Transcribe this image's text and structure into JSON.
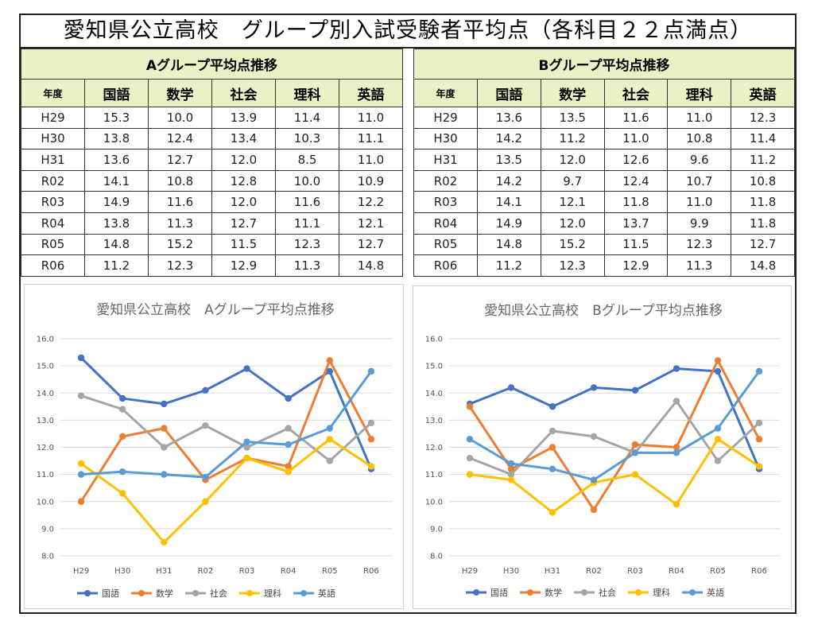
{
  "title": "愛知県公立高校　グループ別入試受験者平均点（各科目２２点満点）",
  "tables": [
    {
      "title": "Aグループ平均点推移",
      "headers": [
        "年度",
        "国語",
        "数学",
        "社会",
        "理科",
        "英語"
      ],
      "rows": [
        [
          "H29",
          "15.3",
          "10.0",
          "13.9",
          "11.4",
          "11.0"
        ],
        [
          "H30",
          "13.8",
          "12.4",
          "13.4",
          "10.3",
          "11.1"
        ],
        [
          "H31",
          "13.6",
          "12.7",
          "12.0",
          "8.5",
          "11.0"
        ],
        [
          "R02",
          "14.1",
          "10.8",
          "12.8",
          "10.0",
          "10.9"
        ],
        [
          "R03",
          "14.9",
          "11.6",
          "12.0",
          "11.6",
          "12.2"
        ],
        [
          "R04",
          "13.8",
          "11.3",
          "12.7",
          "11.1",
          "12.1"
        ],
        [
          "R05",
          "14.8",
          "15.2",
          "11.5",
          "12.3",
          "12.7"
        ],
        [
          "R06",
          "11.2",
          "12.3",
          "12.9",
          "11.3",
          "14.8"
        ]
      ]
    },
    {
      "title": "Bグループ平均点推移",
      "headers": [
        "年度",
        "国語",
        "数学",
        "社会",
        "理科",
        "英語"
      ],
      "rows": [
        [
          "H29",
          "13.6",
          "13.5",
          "11.6",
          "11.0",
          "12.3"
        ],
        [
          "H30",
          "14.2",
          "11.2",
          "11.0",
          "10.8",
          "11.4"
        ],
        [
          "H31",
          "13.5",
          "12.0",
          "12.6",
          "9.6",
          "11.2"
        ],
        [
          "R02",
          "14.2",
          "9.7",
          "12.4",
          "10.7",
          "10.8"
        ],
        [
          "R03",
          "14.1",
          "12.1",
          "11.8",
          "11.0",
          "11.8"
        ],
        [
          "R04",
          "14.9",
          "12.0",
          "13.7",
          "9.9",
          "11.8"
        ],
        [
          "R05",
          "14.8",
          "15.2",
          "11.5",
          "12.3",
          "12.7"
        ],
        [
          "R06",
          "11.2",
          "12.3",
          "12.9",
          "11.3",
          "14.8"
        ]
      ]
    }
  ],
  "chart_data": [
    {
      "type": "line",
      "title": "愛知県公立高校　Aグループ平均点推移",
      "categories": [
        "H29",
        "H30",
        "H31",
        "R02",
        "R03",
        "R04",
        "R05",
        "R06"
      ],
      "ylim": [
        8.0,
        16.0
      ],
      "yticks": [
        "8.0",
        "9.0",
        "10.0",
        "11.0",
        "12.0",
        "13.0",
        "14.0",
        "15.0",
        "16.0"
      ],
      "grid": true,
      "legend_position": "bottom",
      "series": [
        {
          "name": "国語",
          "color": "#4472c4",
          "values": [
            15.3,
            13.8,
            13.6,
            14.1,
            14.9,
            13.8,
            14.8,
            11.2
          ]
        },
        {
          "name": "数学",
          "color": "#ed7d31",
          "values": [
            10.0,
            12.4,
            12.7,
            10.8,
            11.6,
            11.3,
            15.2,
            12.3
          ]
        },
        {
          "name": "社会",
          "color": "#a5a5a5",
          "values": [
            13.9,
            13.4,
            12.0,
            12.8,
            12.0,
            12.7,
            11.5,
            12.9
          ]
        },
        {
          "name": "理科",
          "color": "#ffc000",
          "values": [
            11.4,
            10.3,
            8.5,
            10.0,
            11.6,
            11.1,
            12.3,
            11.3
          ]
        },
        {
          "name": "英語",
          "color": "#5b9bd5",
          "values": [
            11.0,
            11.1,
            11.0,
            10.9,
            12.2,
            12.1,
            12.7,
            14.8
          ]
        }
      ]
    },
    {
      "type": "line",
      "title": "愛知県公立高校　Bグループ平均点推移",
      "categories": [
        "H29",
        "H30",
        "H31",
        "R02",
        "R03",
        "R04",
        "R05",
        "R06"
      ],
      "ylim": [
        8.0,
        16.0
      ],
      "yticks": [
        "8.0",
        "9.0",
        "10.0",
        "11.0",
        "12.0",
        "13.0",
        "14.0",
        "15.0",
        "16.0"
      ],
      "grid": true,
      "legend_position": "bottom",
      "series": [
        {
          "name": "国語",
          "color": "#4472c4",
          "values": [
            13.6,
            14.2,
            13.5,
            14.2,
            14.1,
            14.9,
            14.8,
            11.2
          ]
        },
        {
          "name": "数学",
          "color": "#ed7d31",
          "values": [
            13.5,
            11.2,
            12.0,
            9.7,
            12.1,
            12.0,
            15.2,
            12.3
          ]
        },
        {
          "name": "社会",
          "color": "#a5a5a5",
          "values": [
            11.6,
            11.0,
            12.6,
            12.4,
            11.8,
            13.7,
            11.5,
            12.9
          ]
        },
        {
          "name": "理科",
          "color": "#ffc000",
          "values": [
            11.0,
            10.8,
            9.6,
            10.7,
            11.0,
            9.9,
            12.3,
            11.3
          ]
        },
        {
          "name": "英語",
          "color": "#5b9bd5",
          "values": [
            12.3,
            11.4,
            11.2,
            10.8,
            11.8,
            11.8,
            12.7,
            14.8
          ]
        }
      ]
    }
  ]
}
